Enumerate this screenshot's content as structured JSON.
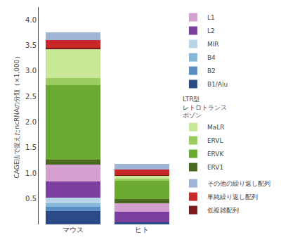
{
  "chart_data": {
    "type": "bar",
    "stacked": true,
    "categories": [
      "マウス",
      "ヒト"
    ],
    "ylabel": "CAGE法で捉えたncRNAの分類（×1,000）",
    "ylim": [
      0,
      4.25
    ],
    "yticks": [
      0.5,
      {
        "value": 1.0,
        "label": "1.0"
      },
      1.5,
      {
        "value": 2.0,
        "label": "2.0"
      },
      2.5,
      {
        "value": 3.0,
        "label": "3.0"
      },
      3.5,
      {
        "value": 4.0,
        "label": "4.0"
      }
    ],
    "grid": false,
    "legend": "right",
    "series": [
      {
        "name": "B1/Alu",
        "color": "#2b4b87",
        "values": [
          0.255,
          0.038
        ]
      },
      {
        "name": "B2",
        "color": "#5b8ec2",
        "values": [
          0.085,
          0.0
        ]
      },
      {
        "name": "B4",
        "color": "#85b8d8",
        "values": [
          0.075,
          0.0
        ]
      },
      {
        "name": "MIR",
        "color": "#b8d4e8",
        "values": [
          0.11,
          0.0
        ]
      },
      {
        "name": "L2",
        "color": "#7b3fa0",
        "values": [
          0.31,
          0.21
        ]
      },
      {
        "name": "L1",
        "color": "#d4a0d0",
        "values": [
          0.33,
          0.17
        ]
      },
      {
        "name": "ERV1",
        "color": "#4a6820",
        "values": [
          0.105,
          0.075
        ]
      },
      {
        "name": "ERVK",
        "color": "#6aaa30",
        "values": [
          1.45,
          0.355
        ]
      },
      {
        "name": "ERVL",
        "color": "#9acc60",
        "values": [
          0.145,
          0.048
        ]
      },
      {
        "name": "MaLR",
        "color": "#c8e898",
        "values": [
          0.56,
          0.053
        ]
      },
      {
        "name": "低複雑配列",
        "color": "#7a1a1a",
        "values": [
          0.03,
          0.02
        ]
      },
      {
        "name": "単純繰り返し配列",
        "color": "#c82828",
        "values": [
          0.145,
          0.1
        ]
      },
      {
        "name": "その他の繰り返し配列",
        "color": "#a0b4d8",
        "values": [
          0.16,
          0.11
        ]
      }
    ],
    "annotations": [
      {
        "text": "LTR型\nレトロトランス\nボゾン",
        "series": [
          "MaLR",
          "ERVL",
          "ERVK",
          "ERV1"
        ]
      }
    ]
  }
}
